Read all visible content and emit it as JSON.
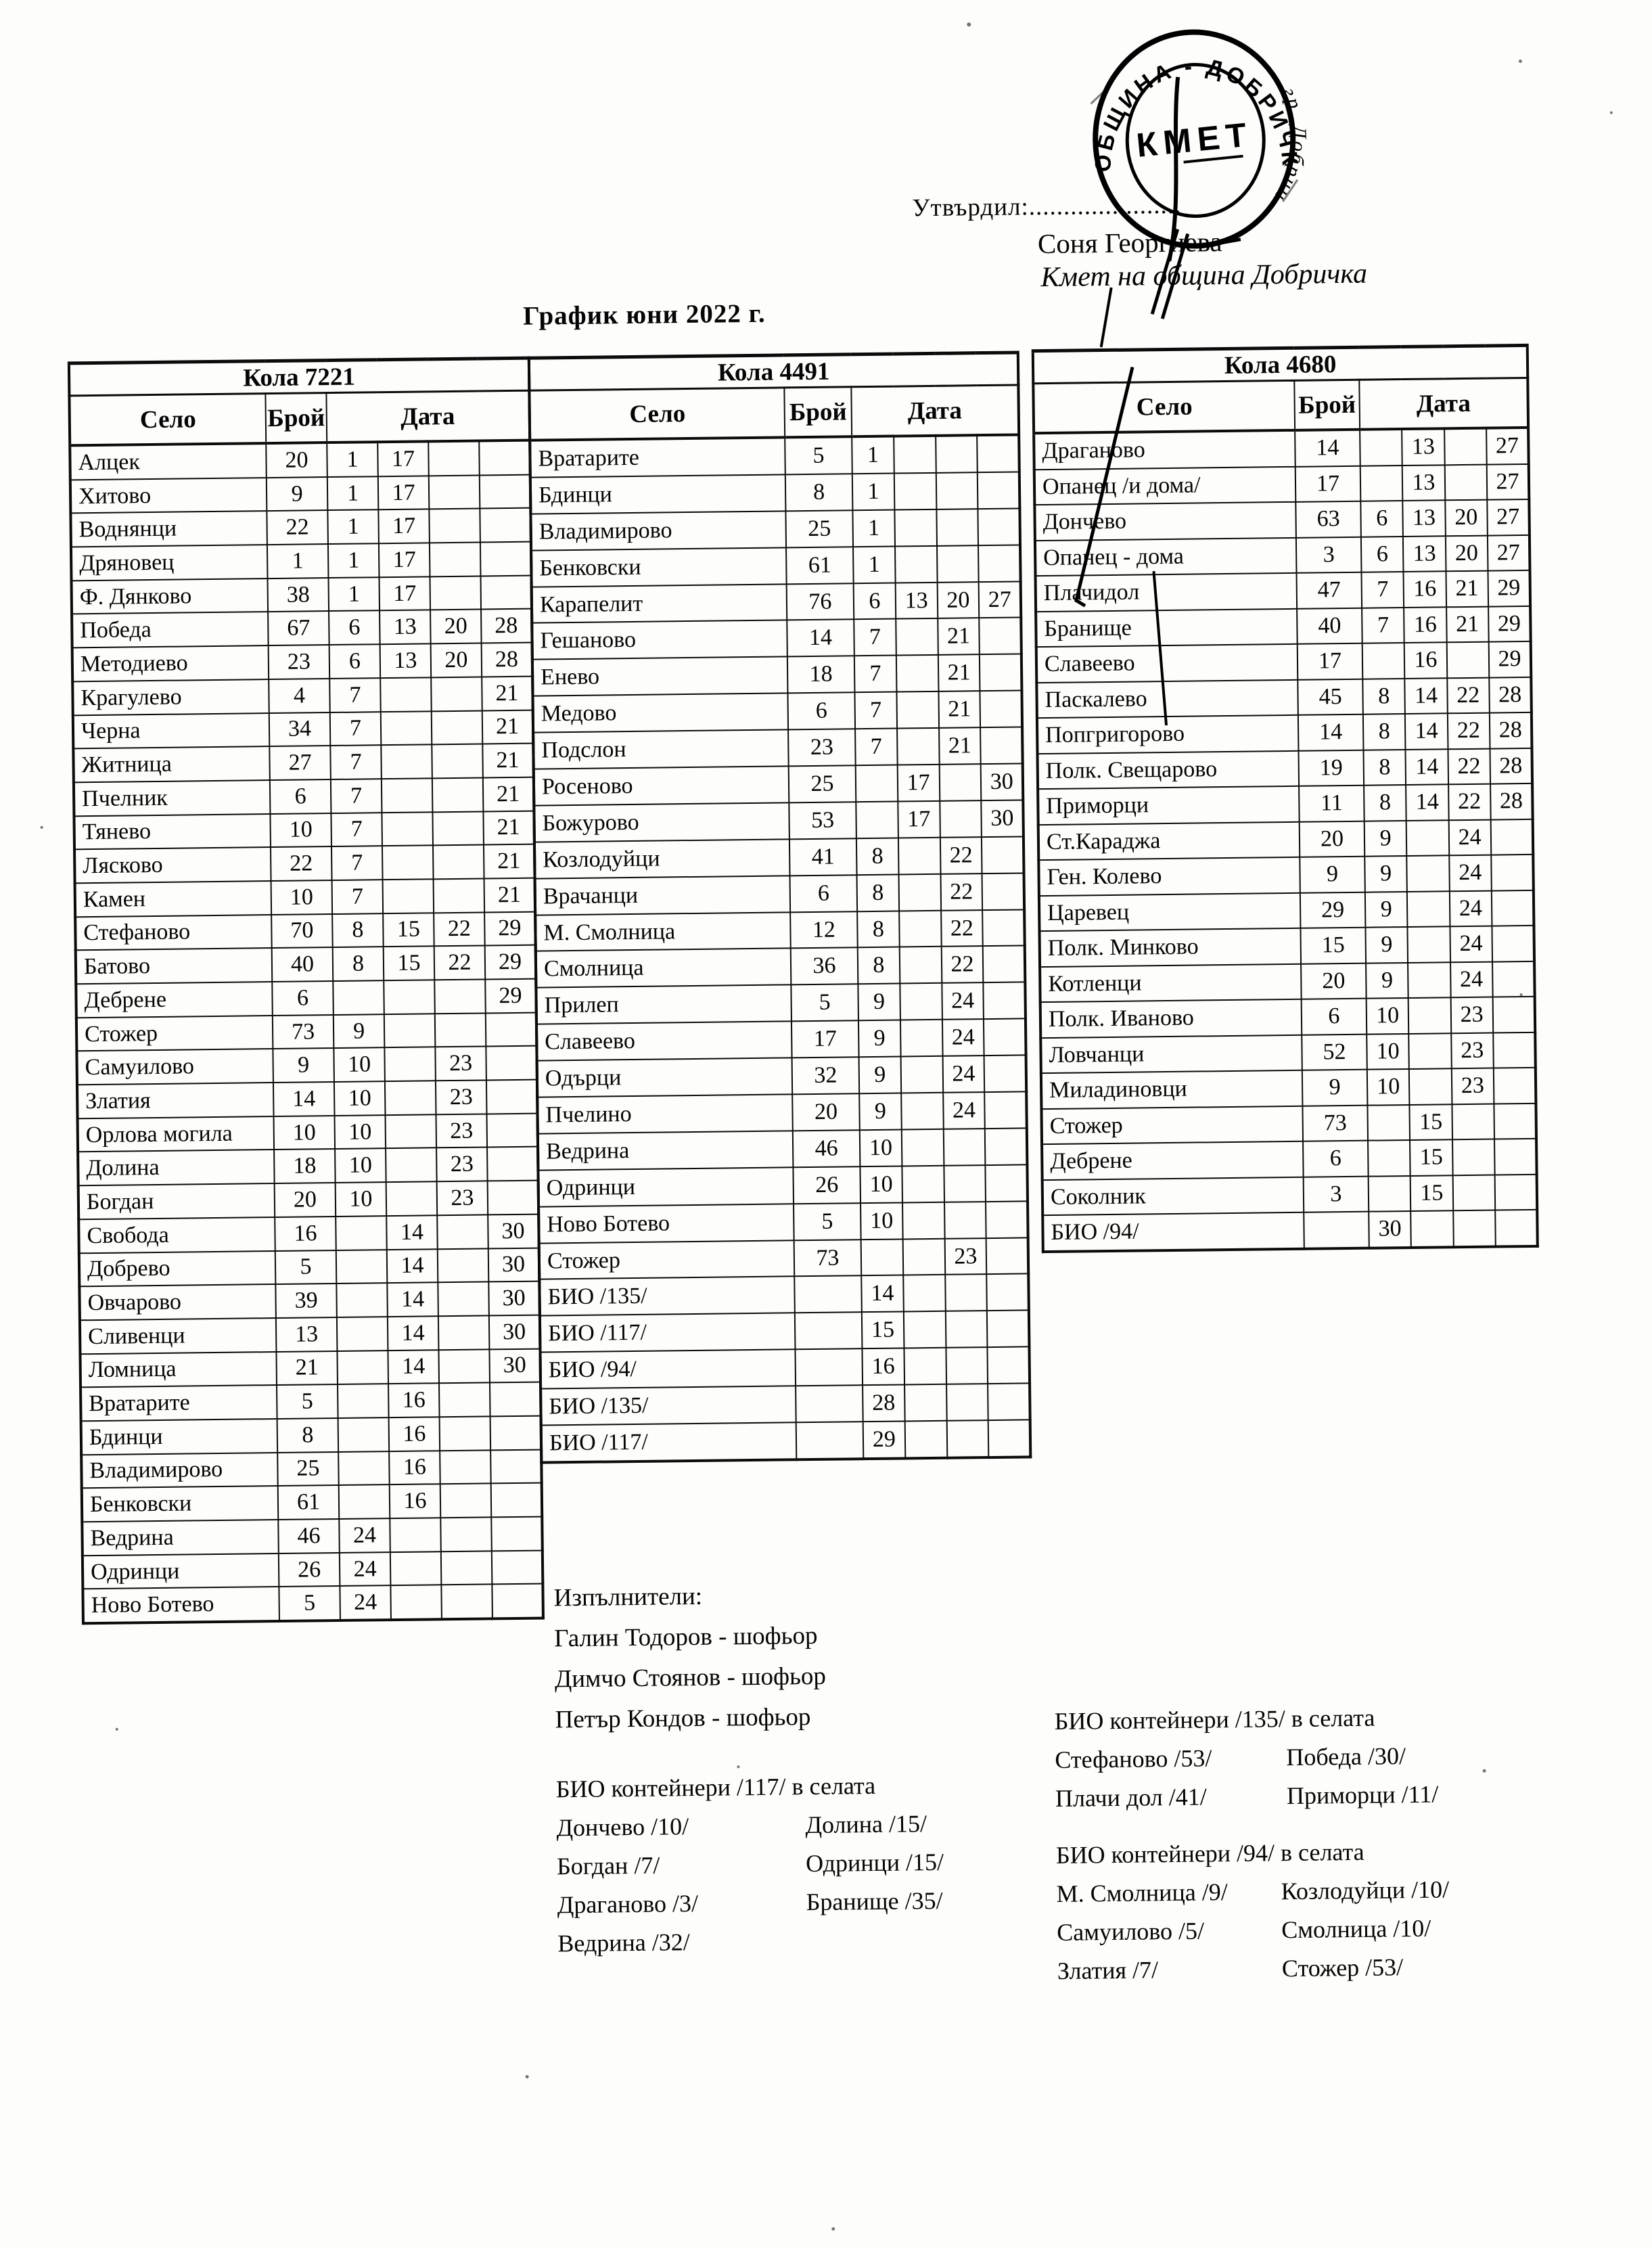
{
  "approval": {
    "label": "Утвърдил:......................",
    "name": "Соня Георгиева",
    "role": "Кмет  на община Добричка"
  },
  "stamp": {
    "ring_top": "ОБЩИНА - ДОБРИЧКА",
    "ring_bottom": "гр. Добрич",
    "center": "КМЕТ"
  },
  "title": "График юни 2022 г.",
  "tables": [
    {
      "title": "Кола 7221",
      "col_selo": "Село",
      "col_broy": "Брой",
      "col_data": "Дата",
      "rows": [
        [
          "Алцек",
          "20",
          "1",
          "17",
          "",
          ""
        ],
        [
          "Хитово",
          "9",
          "1",
          "17",
          "",
          ""
        ],
        [
          "Воднянци",
          "22",
          "1",
          "17",
          "",
          ""
        ],
        [
          "Дряновец",
          "1",
          "1",
          "17",
          "",
          ""
        ],
        [
          "Ф. Дянково",
          "38",
          "1",
          "17",
          "",
          ""
        ],
        [
          "Победа",
          "67",
          "6",
          "13",
          "20",
          "28"
        ],
        [
          "Методиево",
          "23",
          "6",
          "13",
          "20",
          "28"
        ],
        [
          "Крагулево",
          "4",
          "7",
          "",
          "",
          "21"
        ],
        [
          "Черна",
          "34",
          "7",
          "",
          "",
          "21"
        ],
        [
          "Житница",
          "27",
          "7",
          "",
          "",
          "21"
        ],
        [
          "Пчелник",
          "6",
          "7",
          "",
          "",
          "21"
        ],
        [
          "Тянево",
          "10",
          "7",
          "",
          "",
          "21"
        ],
        [
          "Лясково",
          "22",
          "7",
          "",
          "",
          "21"
        ],
        [
          "Камен",
          "10",
          "7",
          "",
          "",
          "21"
        ],
        [
          "Стефаново",
          "70",
          "8",
          "15",
          "22",
          "29"
        ],
        [
          "Батово",
          "40",
          "8",
          "15",
          "22",
          "29"
        ],
        [
          "Дебрене",
          "6",
          "",
          "",
          "",
          "29"
        ],
        [
          "Стожер",
          "73",
          "9",
          "",
          "",
          ""
        ],
        [
          "Самуилово",
          "9",
          "10",
          "",
          "23",
          ""
        ],
        [
          "Златия",
          "14",
          "10",
          "",
          "23",
          ""
        ],
        [
          "Орлова могила",
          "10",
          "10",
          "",
          "23",
          ""
        ],
        [
          "Долина",
          "18",
          "10",
          "",
          "23",
          ""
        ],
        [
          "Богдан",
          "20",
          "10",
          "",
          "23",
          ""
        ],
        [
          "Свобода",
          "16",
          "",
          "14",
          "",
          "30"
        ],
        [
          "Добрево",
          "5",
          "",
          "14",
          "",
          "30"
        ],
        [
          "Овчарово",
          "39",
          "",
          "14",
          "",
          "30"
        ],
        [
          "Сливенци",
          "13",
          "",
          "14",
          "",
          "30"
        ],
        [
          "Ломница",
          "21",
          "",
          "14",
          "",
          "30"
        ],
        [
          "Вратарите",
          "5",
          "",
          "16",
          "",
          ""
        ],
        [
          "Бдинци",
          "8",
          "",
          "16",
          "",
          ""
        ],
        [
          "Владимирово",
          "25",
          "",
          "16",
          "",
          ""
        ],
        [
          "Бенковски",
          "61",
          "",
          "16",
          "",
          ""
        ],
        [
          "Ведрина",
          "46",
          "24",
          "",
          "",
          ""
        ],
        [
          "Одринци",
          "26",
          "24",
          "",
          "",
          ""
        ],
        [
          "Ново Ботево",
          "5",
          "24",
          "",
          "",
          ""
        ]
      ]
    },
    {
      "title": "Кола 4491",
      "col_selo": "Село",
      "col_broy": "Брой",
      "col_data": "Дата",
      "rows": [
        [
          "Вратарите",
          "5",
          "1",
          "",
          "",
          ""
        ],
        [
          "Бдинци",
          "8",
          "1",
          "",
          "",
          ""
        ],
        [
          "Владимирово",
          "25",
          "1",
          "",
          "",
          ""
        ],
        [
          "Бенковски",
          "61",
          "1",
          "",
          "",
          ""
        ],
        [
          "Карапелит",
          "76",
          "6",
          "13",
          "20",
          "27"
        ],
        [
          "Гешаново",
          "14",
          "7",
          "",
          "21",
          ""
        ],
        [
          "Енево",
          "18",
          "7",
          "",
          "21",
          ""
        ],
        [
          "Медово",
          "6",
          "7",
          "",
          "21",
          ""
        ],
        [
          "Подслон",
          "23",
          "7",
          "",
          "21",
          ""
        ],
        [
          "Росеново",
          "25",
          "",
          "17",
          "",
          "30"
        ],
        [
          "Божурово",
          "53",
          "",
          "17",
          "",
          "30"
        ],
        [
          "Козлодуйци",
          "41",
          "8",
          "",
          "22",
          ""
        ],
        [
          "Врачанци",
          "6",
          "8",
          "",
          "22",
          ""
        ],
        [
          "М. Смолница",
          "12",
          "8",
          "",
          "22",
          ""
        ],
        [
          "Смолница",
          "36",
          "8",
          "",
          "22",
          ""
        ],
        [
          "Прилеп",
          "5",
          "9",
          "",
          "24",
          ""
        ],
        [
          "Славеево",
          "17",
          "9",
          "",
          "24",
          ""
        ],
        [
          "Одърци",
          "32",
          "9",
          "",
          "24",
          ""
        ],
        [
          "Пчелино",
          "20",
          "9",
          "",
          "24",
          ""
        ],
        [
          "Ведрина",
          "46",
          "10",
          "",
          "",
          ""
        ],
        [
          "Одринци",
          "26",
          "10",
          "",
          "",
          ""
        ],
        [
          "Ново Ботево",
          "5",
          "10",
          "",
          "",
          ""
        ],
        [
          "Стожер",
          "73",
          "",
          "",
          "23",
          ""
        ],
        [
          "БИО /135/",
          "",
          "14",
          "",
          "",
          ""
        ],
        [
          "БИО /117/",
          "",
          "15",
          "",
          "",
          ""
        ],
        [
          "БИО /94/",
          "",
          "16",
          "",
          "",
          ""
        ],
        [
          "БИО /135/",
          "",
          "28",
          "",
          "",
          ""
        ],
        [
          "БИО /117/",
          "",
          "29",
          "",
          "",
          ""
        ]
      ]
    },
    {
      "title": "Кола 4680",
      "col_selo": "Село",
      "col_broy": "Брой",
      "col_data": "Дата",
      "rows": [
        [
          "Драганово",
          "14",
          "",
          "13",
          "",
          "27"
        ],
        [
          "Опанец /и дома/",
          "17",
          "",
          "13",
          "",
          "27"
        ],
        [
          "Дончево",
          "63",
          "6",
          "13",
          "20",
          "27"
        ],
        [
          "Опанец - дома",
          "3",
          "6",
          "13",
          "20",
          "27"
        ],
        [
          "Плачидол",
          "47",
          "7",
          "16",
          "21",
          "29"
        ],
        [
          "Бранище",
          "40",
          "7",
          "16",
          "21",
          "29"
        ],
        [
          "Славеево",
          "17",
          "",
          "16",
          "",
          "29"
        ],
        [
          "Паскалево",
          "45",
          "8",
          "14",
          "22",
          "28"
        ],
        [
          "Попгригорово",
          "14",
          "8",
          "14",
          "22",
          "28"
        ],
        [
          "Полк. Свещарово",
          "19",
          "8",
          "14",
          "22",
          "28"
        ],
        [
          "Приморци",
          "11",
          "8",
          "14",
          "22",
          "28"
        ],
        [
          "Ст.Караджа",
          "20",
          "9",
          "",
          "24",
          ""
        ],
        [
          "Ген. Колево",
          "9",
          "9",
          "",
          "24",
          ""
        ],
        [
          "Царевец",
          "29",
          "9",
          "",
          "24",
          ""
        ],
        [
          "Полк. Минково",
          "15",
          "9",
          "",
          "24",
          ""
        ],
        [
          "Котленци",
          "20",
          "9",
          "",
          "24",
          ""
        ],
        [
          "Полк. Иваново",
          "6",
          "10",
          "",
          "23",
          ""
        ],
        [
          "Ловчанци",
          "52",
          "10",
          "",
          "23",
          ""
        ],
        [
          "Миладиновци",
          "9",
          "10",
          "",
          "23",
          ""
        ],
        [
          "Стожер",
          "73",
          "",
          "15",
          "",
          ""
        ],
        [
          "Дебрене",
          "6",
          "",
          "15",
          "",
          ""
        ],
        [
          "Соколник",
          "3",
          "",
          "15",
          "",
          ""
        ],
        [
          "БИО /94/",
          "",
          "30",
          "",
          "",
          ""
        ]
      ]
    }
  ],
  "performers": {
    "heading": "Изпълнители:",
    "items": [
      "Галин Тодоров - шофьор",
      "Димчо Стоянов - шофьор",
      "Петър Кондов - шофьор"
    ]
  },
  "bio_blocks": [
    {
      "heading": "БИО контейнери /117/ в селата",
      "left": [
        "Дончево /10/",
        "Богдан /7/",
        "Драганово /3/",
        "Ведрина /32/"
      ],
      "right": [
        "Долина /15/",
        "Одринци /15/",
        "Бранище /35/",
        ""
      ]
    },
    {
      "heading": "БИО контейнери /135/ в селата",
      "left": [
        "Стефаново /53/",
        "Плачи дол /41/"
      ],
      "right": [
        "Победа /30/",
        "Приморци /11/"
      ]
    },
    {
      "heading": "БИО контейнери /94/ в селата",
      "left": [
        "М. Смолница /9/",
        "Самуилово /5/",
        "Златия /7/"
      ],
      "right": [
        "Козлодуйци /10/",
        "Смолница /10/",
        "Стожер /53/"
      ]
    }
  ]
}
